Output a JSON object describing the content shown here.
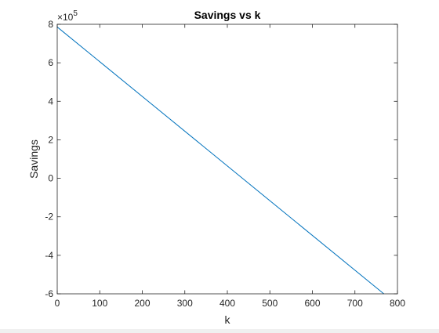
{
  "chart_data": {
    "type": "line",
    "title": "Savings vs k",
    "xlabel": "k",
    "ylabel": "Savings",
    "y_exponent_base": "×10",
    "y_exponent_power": "5",
    "xlim": [
      0,
      800
    ],
    "ylim": [
      -6,
      8
    ],
    "x_ticks": [
      0,
      100,
      200,
      300,
      400,
      500,
      600,
      700,
      800
    ],
    "y_ticks": [
      -6,
      -4,
      -2,
      0,
      2,
      4,
      6,
      8
    ],
    "grid": false,
    "legend": "none",
    "series": [
      {
        "x": [
          0,
          768
        ],
        "y": [
          7.86,
          -6.0
        ],
        "color": "#0072BD"
      }
    ]
  }
}
